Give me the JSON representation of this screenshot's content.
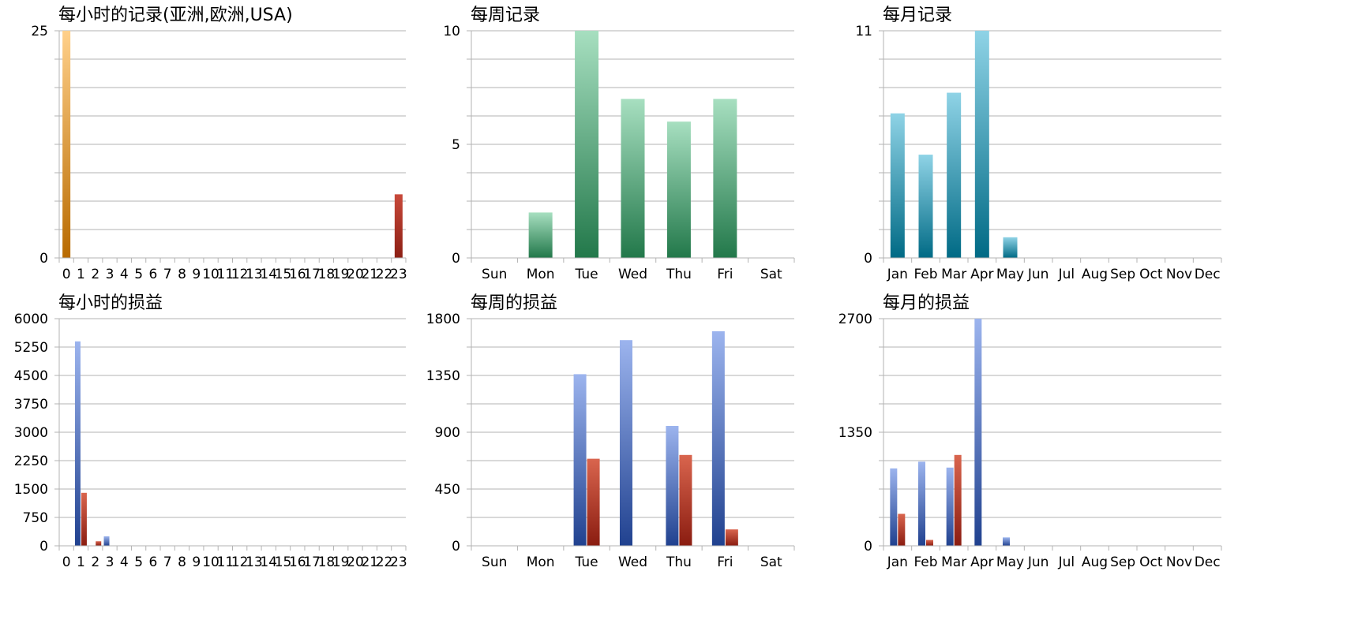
{
  "colors": {
    "hourly_count": [
      "#ffd08a",
      "#b86a00"
    ],
    "hourly_count_last": [
      "#c8493a",
      "#8c1f14"
    ],
    "weekly_count": [
      "#a7dfc0",
      "#22784a"
    ],
    "monthly_count": [
      "#8fd3e6",
      "#006a85"
    ],
    "pnl_series_1": [
      "#9cb4ee",
      "#20418f"
    ],
    "pnl_series_2": [
      "#d9654e",
      "#8a1c10"
    ]
  },
  "chart_data": [
    {
      "type": "bar",
      "title": "每小时的记录(亚洲,欧洲,USA)",
      "categories": [
        "0",
        "1",
        "2",
        "3",
        "4",
        "5",
        "6",
        "7",
        "8",
        "9",
        "10",
        "11",
        "12",
        "13",
        "14",
        "15",
        "16",
        "17",
        "18",
        "19",
        "20",
        "21",
        "22",
        "23"
      ],
      "series": [
        {
          "values": [
            25,
            0,
            0,
            0,
            0,
            0,
            0,
            0,
            0,
            0,
            0,
            0,
            0,
            0,
            0,
            0,
            0,
            0,
            0,
            0,
            0,
            0,
            0,
            7
          ]
        }
      ],
      "yticks": [
        "25",
        "0"
      ],
      "ylim": [
        0,
        25
      ],
      "grid": true
    },
    {
      "type": "bar",
      "title": "每周记录",
      "categories": [
        "Sun",
        "Mon",
        "Tue",
        "Wed",
        "Thu",
        "Fri",
        "Sat"
      ],
      "series": [
        {
          "values": [
            0,
            2,
            10,
            7,
            6,
            7,
            0
          ]
        }
      ],
      "yticks": [
        "10",
        "5",
        "0"
      ],
      "ylim": [
        0,
        10
      ],
      "grid": true
    },
    {
      "type": "bar",
      "title": "每月记录",
      "categories": [
        "Jan",
        "Feb",
        "Mar",
        "Apr",
        "May",
        "Jun",
        "Jul",
        "Aug",
        "Sep",
        "Oct",
        "Nov",
        "Dec"
      ],
      "series": [
        {
          "values": [
            7,
            5,
            8,
            11,
            1,
            0,
            0,
            0,
            0,
            0,
            0,
            0
          ]
        }
      ],
      "yticks": [
        "11",
        "0"
      ],
      "ylim": [
        0,
        11
      ],
      "grid": true
    },
    {
      "type": "bar",
      "title": "每小时的损益",
      "categories": [
        "0",
        "1",
        "2",
        "3",
        "4",
        "5",
        "6",
        "7",
        "8",
        "9",
        "10",
        "11",
        "12",
        "13",
        "14",
        "15",
        "16",
        "17",
        "18",
        "19",
        "20",
        "21",
        "22",
        "23"
      ],
      "series": [
        {
          "values": [
            0,
            5400,
            0,
            250,
            0,
            0,
            0,
            0,
            0,
            0,
            0,
            0,
            0,
            0,
            0,
            0,
            0,
            0,
            0,
            0,
            0,
            0,
            0,
            0
          ]
        },
        {
          "values": [
            0,
            1400,
            120,
            0,
            0,
            0,
            0,
            0,
            0,
            0,
            0,
            0,
            0,
            0,
            0,
            0,
            0,
            0,
            0,
            0,
            0,
            0,
            0,
            0
          ]
        }
      ],
      "yticks": [
        "6000",
        "5250",
        "4500",
        "3750",
        "3000",
        "2250",
        "1500",
        "750",
        "0"
      ],
      "ylim": [
        0,
        6000
      ],
      "grid": true
    },
    {
      "type": "bar",
      "title": "每周的损益",
      "categories": [
        "Sun",
        "Mon",
        "Tue",
        "Wed",
        "Thu",
        "Fri",
        "Sat"
      ],
      "series": [
        {
          "values": [
            0,
            0,
            1360,
            1630,
            950,
            1700,
            0
          ]
        },
        {
          "values": [
            0,
            0,
            690,
            0,
            720,
            130,
            0
          ]
        }
      ],
      "yticks": [
        "1800",
        "1350",
        "900",
        "450",
        "0"
      ],
      "ylim": [
        0,
        1800
      ],
      "grid": true
    },
    {
      "type": "bar",
      "title": "每月的损益",
      "categories": [
        "Jan",
        "Feb",
        "Mar",
        "Apr",
        "May",
        "Jun",
        "Jul",
        "Aug",
        "Sep",
        "Oct",
        "Nov",
        "Dec"
      ],
      "series": [
        {
          "values": [
            920,
            1000,
            930,
            2700,
            100,
            0,
            0,
            0,
            0,
            0,
            0,
            0
          ]
        },
        {
          "values": [
            380,
            70,
            1080,
            0,
            0,
            0,
            0,
            0,
            0,
            0,
            0,
            0
          ]
        }
      ],
      "yticks": [
        "2700",
        "1350",
        "0"
      ],
      "ylim": [
        0,
        2700
      ],
      "grid": true
    }
  ]
}
